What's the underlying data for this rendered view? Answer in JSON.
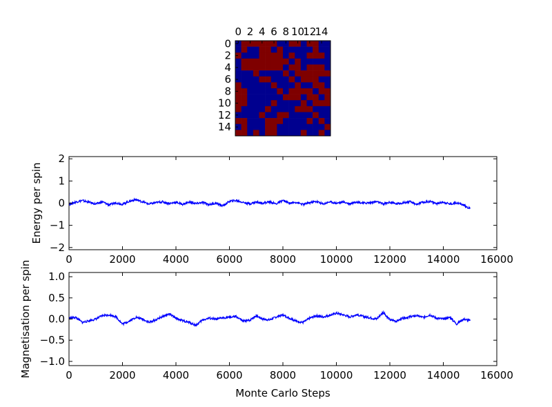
{
  "figure": {
    "colors": {
      "spin_up": "#7f0000",
      "spin_down": "#00008f",
      "trace": "#0000ff",
      "frame": "#000000"
    }
  },
  "chart_data": [
    {
      "type": "heatmap",
      "title": "",
      "x_ticks": [
        "0",
        "2",
        "4",
        "6",
        "8",
        "10",
        "12",
        "14"
      ],
      "y_ticks": [
        "0",
        "2",
        "4",
        "6",
        "8",
        "10",
        "12",
        "14"
      ],
      "size": 16,
      "values": [
        [
          0,
          1,
          1,
          1,
          1,
          1,
          1,
          0,
          0,
          1,
          1,
          0,
          1,
          1,
          0,
          0
        ],
        [
          0,
          1,
          0,
          0,
          1,
          1,
          0,
          1,
          0,
          0,
          0,
          0,
          0,
          1,
          0,
          0
        ],
        [
          1,
          0,
          0,
          0,
          1,
          1,
          1,
          1,
          0,
          1,
          0,
          0,
          1,
          1,
          1,
          0
        ],
        [
          0,
          1,
          1,
          1,
          1,
          1,
          1,
          1,
          1,
          0,
          1,
          0,
          0,
          0,
          0,
          0
        ],
        [
          0,
          1,
          1,
          1,
          1,
          1,
          1,
          1,
          0,
          1,
          1,
          0,
          1,
          1,
          1,
          0
        ],
        [
          0,
          0,
          0,
          1,
          0,
          0,
          0,
          0,
          1,
          0,
          1,
          1,
          1,
          1,
          1,
          1
        ],
        [
          0,
          0,
          0,
          0,
          1,
          1,
          0,
          0,
          0,
          1,
          0,
          1,
          1,
          1,
          0,
          0
        ],
        [
          1,
          0,
          0,
          0,
          0,
          0,
          1,
          0,
          0,
          0,
          1,
          0,
          0,
          1,
          1,
          0
        ],
        [
          1,
          1,
          0,
          0,
          0,
          0,
          0,
          1,
          0,
          1,
          1,
          1,
          1,
          0,
          1,
          1
        ],
        [
          1,
          1,
          0,
          0,
          0,
          0,
          0,
          0,
          1,
          1,
          1,
          0,
          1,
          1,
          0,
          1
        ],
        [
          1,
          1,
          0,
          0,
          0,
          0,
          1,
          0,
          0,
          0,
          0,
          1,
          0,
          1,
          1,
          1
        ],
        [
          1,
          0,
          0,
          0,
          0,
          1,
          0,
          0,
          0,
          0,
          1,
          1,
          1,
          0,
          0,
          0
        ],
        [
          0,
          0,
          0,
          0,
          1,
          0,
          0,
          1,
          1,
          0,
          0,
          0,
          0,
          1,
          0,
          0
        ],
        [
          1,
          1,
          0,
          0,
          0,
          1,
          1,
          1,
          0,
          0,
          0,
          0,
          1,
          0,
          1,
          0
        ],
        [
          0,
          1,
          0,
          0,
          0,
          1,
          1,
          0,
          0,
          0,
          0,
          0,
          0,
          0,
          0,
          1
        ],
        [
          1,
          1,
          0,
          1,
          0,
          1,
          1,
          0,
          0,
          0,
          0,
          1,
          0,
          0,
          1,
          0
        ]
      ]
    },
    {
      "type": "line",
      "title": "",
      "xlabel": "",
      "ylabel": "Energy per spin",
      "xlim": [
        0,
        16000
      ],
      "ylim": [
        -2.1,
        2.1
      ],
      "x_ticks": [
        "0",
        "2000",
        "4000",
        "6000",
        "8000",
        "10000",
        "12000",
        "14000",
        "16000"
      ],
      "y_ticks": [
        "−2",
        "−1",
        "0",
        "1",
        "2"
      ],
      "x": [
        0,
        250,
        500,
        750,
        1000,
        1250,
        1500,
        1750,
        2000,
        2250,
        2500,
        2750,
        3000,
        3250,
        3500,
        3750,
        4000,
        4250,
        4500,
        4750,
        5000,
        5250,
        5500,
        5750,
        6000,
        6250,
        6500,
        6750,
        7000,
        7250,
        7500,
        7750,
        8000,
        8250,
        8500,
        8750,
        9000,
        9250,
        9500,
        9750,
        10000,
        10250,
        10500,
        10750,
        11000,
        11250,
        11500,
        11750,
        12000,
        12250,
        12500,
        12750,
        13000,
        13250,
        13500,
        13750,
        14000,
        14250,
        14500,
        14750,
        15000
      ],
      "values": [
        -0.05,
        0.05,
        0.12,
        0.04,
        -0.04,
        0.06,
        -0.08,
        0.02,
        -0.05,
        0.08,
        0.16,
        0.06,
        -0.04,
        0.02,
        0.06,
        -0.02,
        0.04,
        -0.05,
        0.05,
        -0.02,
        0.03,
        -0.06,
        0.0,
        -0.12,
        0.08,
        0.12,
        0.04,
        -0.03,
        0.05,
        0.0,
        0.06,
        -0.03,
        0.12,
        0.0,
        0.04,
        -0.06,
        0.02,
        0.08,
        -0.04,
        0.06,
        0.0,
        0.05,
        -0.02,
        0.06,
        0.0,
        0.02,
        0.07,
        -0.04,
        0.04,
        -0.03,
        0.02,
        0.06,
        -0.05,
        0.04,
        0.08,
        -0.02,
        0.05,
        -0.04,
        0.02,
        -0.08,
        -0.25
      ]
    },
    {
      "type": "line",
      "title": "",
      "xlabel": "Monte Carlo Steps",
      "ylabel": "Magnetisation per spin",
      "xlim": [
        0,
        16000
      ],
      "ylim": [
        -1.1,
        1.1
      ],
      "x_ticks": [
        "0",
        "2000",
        "4000",
        "6000",
        "8000",
        "10000",
        "12000",
        "14000",
        "16000"
      ],
      "y_ticks": [
        "−1.0",
        "−0.5",
        "0.0",
        "0.5",
        "1.0"
      ],
      "x": [
        0,
        250,
        500,
        750,
        1000,
        1250,
        1500,
        1750,
        2000,
        2250,
        2500,
        2750,
        3000,
        3250,
        3500,
        3750,
        4000,
        4250,
        4500,
        4750,
        5000,
        5250,
        5500,
        5750,
        6000,
        6250,
        6500,
        6750,
        7000,
        7250,
        7500,
        7750,
        8000,
        8250,
        8500,
        8750,
        9000,
        9250,
        9500,
        9750,
        10000,
        10250,
        10500,
        10750,
        11000,
        11250,
        11500,
        11750,
        12000,
        12250,
        12500,
        12750,
        13000,
        13250,
        13500,
        13750,
        14000,
        14250,
        14500,
        14750,
        15000
      ],
      "values": [
        0.02,
        0.04,
        -0.08,
        -0.04,
        0.0,
        0.08,
        0.1,
        0.06,
        -0.12,
        -0.05,
        0.04,
        0.0,
        -0.08,
        -0.02,
        0.06,
        0.12,
        0.02,
        -0.04,
        -0.08,
        -0.15,
        -0.02,
        0.02,
        -0.01,
        0.03,
        0.04,
        0.06,
        -0.05,
        -0.03,
        0.08,
        0.0,
        -0.02,
        0.05,
        0.1,
        0.02,
        -0.05,
        -0.08,
        0.02,
        0.08,
        0.05,
        0.09,
        0.14,
        0.1,
        0.05,
        0.1,
        0.06,
        0.03,
        0.0,
        0.16,
        -0.02,
        -0.05,
        0.02,
        0.05,
        0.08,
        0.04,
        0.1,
        0.02,
        0.0,
        0.04,
        -0.12,
        0.0,
        -0.04
      ]
    }
  ]
}
